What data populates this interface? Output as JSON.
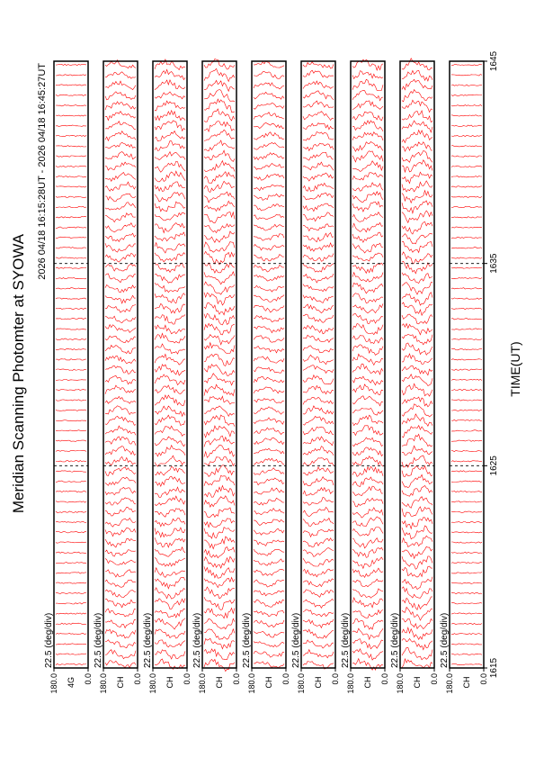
{
  "chart_data": {
    "type": "line",
    "title": "Meridian Scanning Photomter at SYOWA",
    "subtitle": "2026 04/18 16:15:28UT - 2026 04/18 16:45:27UT",
    "x_label": "TIME(UT)",
    "xlim": [
      1615,
      1645
    ],
    "xticks": [
      1615,
      1625,
      1635,
      1645
    ],
    "panels": [
      {
        "scale": "22.5 (deg/div)",
        "channel": "4G",
        "ylim": [
          {
            "value": 0,
            "label": "0.0"
          },
          {
            "value": 180,
            "label": "180.0"
          }
        ]
      },
      {
        "scale": "22.5 (deg/div)",
        "channel": "CH",
        "ylim": [
          {
            "value": 0,
            "label": "0.0"
          },
          {
            "value": 180,
            "label": "180.0"
          }
        ]
      },
      {
        "scale": "22.5 (deg/div)",
        "channel": "CH",
        "ylim": [
          {
            "value": 0,
            "label": "0.0"
          },
          {
            "value": 180,
            "label": "180.0"
          }
        ]
      },
      {
        "scale": "22.5 (deg/div)",
        "channel": "CH",
        "ylim": [
          {
            "value": 0,
            "label": "0.0"
          },
          {
            "value": 180,
            "label": "180.0"
          }
        ]
      },
      {
        "scale": "22.5 (deg/div)",
        "channel": "CH",
        "ylim": [
          {
            "value": 0,
            "label": "0.0"
          },
          {
            "value": 180,
            "label": "180.0"
          }
        ]
      },
      {
        "scale": "22.5 (deg/div)",
        "channel": "CH",
        "ylim": [
          {
            "value": 0,
            "label": "0.0"
          },
          {
            "value": 180,
            "label": "180.0"
          }
        ]
      },
      {
        "scale": "22.5 (deg/div)",
        "channel": "CH",
        "ylim": [
          {
            "value": 0,
            "label": "0.0"
          },
          {
            "value": 180,
            "label": "180.0"
          }
        ]
      },
      {
        "scale": "22.5 (deg/div)",
        "channel": "CH",
        "ylim": [
          {
            "value": 0,
            "label": "0.0"
          },
          {
            "value": 180,
            "label": "180.0"
          }
        ]
      },
      {
        "scale": "22.5 (deg/div)",
        "channel": "CH",
        "ylim": [
          {
            "value": 0,
            "label": "0.0"
          },
          {
            "value": 180,
            "label": "180.0"
          }
        ]
      }
    ],
    "color": "#ff0000"
  }
}
